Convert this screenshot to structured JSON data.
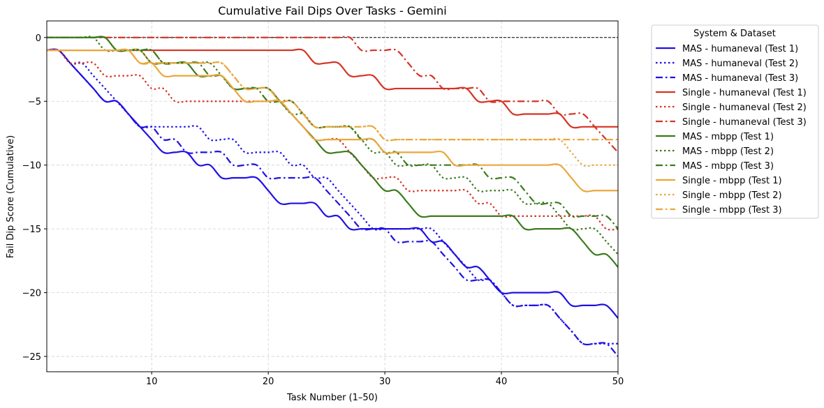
{
  "chart_data": {
    "type": "line",
    "title": "Cumulative Fail Dips Over Tasks - Gemini",
    "xlabel": "Task Number (1–50)",
    "ylabel": "Fail Dip Score (Cumulative)",
    "xlim": [
      1,
      50
    ],
    "ylim": [
      -26.2,
      1.3
    ],
    "xticks": [
      10,
      20,
      30,
      40,
      50
    ],
    "yticks": [
      0,
      -5,
      -10,
      -15,
      -20,
      -25
    ],
    "grid": true,
    "reference_line_y": 0,
    "legend_title": "System & Dataset",
    "legend_position": "outside-right",
    "x": [
      1,
      2,
      3,
      4,
      5,
      6,
      7,
      8,
      9,
      10,
      11,
      12,
      13,
      14,
      15,
      16,
      17,
      18,
      19,
      20,
      21,
      22,
      23,
      24,
      25,
      26,
      27,
      28,
      29,
      30,
      31,
      32,
      33,
      34,
      35,
      36,
      37,
      38,
      39,
      40,
      41,
      42,
      43,
      44,
      45,
      46,
      47,
      48,
      49,
      50
    ],
    "series": [
      {
        "name": "MAS - humaneval (Test 1)",
        "color": "#1f10e6",
        "dash": "solid",
        "values": [
          -1,
          -1,
          -2,
          -3,
          -4,
          -5,
          -5,
          -6,
          -7,
          -8,
          -9,
          -9,
          -9,
          -10,
          -10,
          -11,
          -11,
          -11,
          -11,
          -12,
          -13,
          -13,
          -13,
          -13,
          -14,
          -14,
          -15,
          -15,
          -15,
          -15,
          -15,
          -15,
          -15,
          -16,
          -16,
          -17,
          -18,
          -18,
          -19,
          -20,
          -20,
          -20,
          -20,
          -20,
          -20,
          -21,
          -21,
          -21,
          -21,
          -22
        ]
      },
      {
        "name": "MAS - humaneval (Test 2)",
        "color": "#1f10e6",
        "dash": "dotted",
        "values": [
          -1,
          -1,
          -2,
          -2,
          -3,
          -4,
          -5,
          -6,
          -7,
          -7,
          -7,
          -7,
          -7,
          -7,
          -8,
          -8,
          -8,
          -9,
          -9,
          -9,
          -9,
          -10,
          -10,
          -11,
          -11,
          -12,
          -13,
          -14,
          -15,
          -15,
          -15,
          -15,
          -15,
          -15,
          -16,
          -17,
          -18,
          -19,
          -19,
          -20,
          -21,
          -21,
          -21,
          -21,
          -22,
          -23,
          -24,
          -24,
          -24,
          -24
        ]
      },
      {
        "name": "MAS - humaneval (Test 3)",
        "color": "#1f10e6",
        "dash": "dashdot",
        "values": [
          -1,
          -1,
          -2,
          -3,
          -4,
          -5,
          -5,
          -6,
          -7,
          -7,
          -8,
          -8,
          -9,
          -9,
          -9,
          -9,
          -10,
          -10,
          -10,
          -11,
          -11,
          -11,
          -11,
          -11,
          -12,
          -13,
          -14,
          -15,
          -15,
          -15,
          -16,
          -16,
          -16,
          -16,
          -17,
          -18,
          -19,
          -19,
          -19,
          -20,
          -21,
          -21,
          -21,
          -21,
          -22,
          -23,
          -24,
          -24,
          -24,
          -25
        ]
      },
      {
        "name": "Single - humaneval (Test 1)",
        "color": "#d63324",
        "dash": "solid",
        "values": [
          -1,
          -1,
          -1,
          -1,
          -1,
          -1,
          -1,
          -1,
          -1,
          -1,
          -1,
          -1,
          -1,
          -1,
          -1,
          -1,
          -1,
          -1,
          -1,
          -1,
          -1,
          -1,
          -1,
          -2,
          -2,
          -2,
          -3,
          -3,
          -3,
          -4,
          -4,
          -4,
          -4,
          -4,
          -4,
          -4,
          -4,
          -5,
          -5,
          -5,
          -6,
          -6,
          -6,
          -6,
          -6,
          -7,
          -7,
          -7,
          -7,
          -7
        ]
      },
      {
        "name": "Single - humaneval (Test 2)",
        "color": "#d63324",
        "dash": "dotted",
        "values": [
          -1,
          -1,
          -2,
          -2,
          -2,
          -3,
          -3,
          -3,
          -3,
          -4,
          -4,
          -5,
          -5,
          -5,
          -5,
          -5,
          -5,
          -5,
          -5,
          -5,
          -5,
          -6,
          -7,
          -8,
          -8,
          -8,
          -9,
          -10,
          -11,
          -11,
          -11,
          -12,
          -12,
          -12,
          -12,
          -12,
          -12,
          -13,
          -13,
          -14,
          -14,
          -14,
          -14,
          -14,
          -14,
          -14,
          -14,
          -14,
          -15,
          -15
        ]
      },
      {
        "name": "Single - humaneval (Test 3)",
        "color": "#d63324",
        "dash": "dashdot",
        "values": [
          0,
          0,
          0,
          0,
          0,
          0,
          0,
          0,
          0,
          0,
          0,
          0,
          0,
          0,
          0,
          0,
          0,
          0,
          0,
          0,
          0,
          0,
          0,
          0,
          0,
          0,
          0,
          -1,
          -1,
          -1,
          -1,
          -2,
          -3,
          -3,
          -4,
          -4,
          -4,
          -4,
          -5,
          -5,
          -5,
          -5,
          -5,
          -5,
          -6,
          -6,
          -6,
          -7,
          -8,
          -9
        ]
      },
      {
        "name": "MAS - mbpp (Test 1)",
        "color": "#3a7a1e",
        "dash": "solid",
        "values": [
          0,
          0,
          0,
          0,
          0,
          0,
          -1,
          -1,
          -1,
          -2,
          -2,
          -2,
          -2,
          -3,
          -3,
          -3,
          -4,
          -4,
          -4,
          -4,
          -5,
          -6,
          -7,
          -8,
          -9,
          -9,
          -9,
          -10,
          -11,
          -12,
          -12,
          -13,
          -14,
          -14,
          -14,
          -14,
          -14,
          -14,
          -14,
          -14,
          -14,
          -15,
          -15,
          -15,
          -15,
          -15,
          -16,
          -17,
          -17,
          -18
        ]
      },
      {
        "name": "MAS - mbpp (Test 2)",
        "color": "#3a7a1e",
        "dash": "dotted",
        "values": [
          0,
          0,
          0,
          0,
          0,
          -1,
          -1,
          -1,
          -1,
          -1,
          -2,
          -2,
          -2,
          -2,
          -2,
          -3,
          -4,
          -4,
          -4,
          -4,
          -5,
          -6,
          -6,
          -7,
          -7,
          -7,
          -7,
          -8,
          -9,
          -9,
          -10,
          -10,
          -10,
          -10,
          -11,
          -11,
          -11,
          -12,
          -12,
          -12,
          -12,
          -13,
          -13,
          -13,
          -14,
          -15,
          -15,
          -15,
          -16,
          -17
        ]
      },
      {
        "name": "MAS - mbpp (Test 3)",
        "color": "#3a7a1e",
        "dash": "dashdot",
        "values": [
          0,
          0,
          0,
          0,
          0,
          0,
          -1,
          -1,
          -1,
          -1,
          -2,
          -2,
          -2,
          -2,
          -3,
          -3,
          -4,
          -4,
          -4,
          -5,
          -5,
          -5,
          -6,
          -7,
          -7,
          -7,
          -7,
          -8,
          -8,
          -9,
          -9,
          -10,
          -10,
          -10,
          -10,
          -10,
          -10,
          -10,
          -11,
          -11,
          -11,
          -12,
          -13,
          -13,
          -13,
          -14,
          -14,
          -14,
          -14,
          -15
        ]
      },
      {
        "name": "Single - mbpp (Test 1)",
        "color": "#eaa73a",
        "dash": "solid",
        "values": [
          -1,
          -1,
          -1,
          -1,
          -1,
          -1,
          -1,
          -1,
          -2,
          -2,
          -3,
          -3,
          -3,
          -3,
          -3,
          -3,
          -4,
          -5,
          -5,
          -5,
          -5,
          -6,
          -7,
          -8,
          -8,
          -8,
          -8,
          -8,
          -8,
          -9,
          -9,
          -9,
          -9,
          -9,
          -9,
          -10,
          -10,
          -10,
          -10,
          -10,
          -10,
          -10,
          -10,
          -10,
          -10,
          -11,
          -12,
          -12,
          -12,
          -12
        ]
      },
      {
        "name": "Single - mbpp (Test 2)",
        "color": "#eaa73a",
        "dash": "dotted",
        "values": [
          -1,
          -1,
          -1,
          -1,
          -1,
          -1,
          -1,
          -1,
          -1,
          -2,
          -2,
          -2,
          -2,
          -2,
          -2,
          -2,
          -3,
          -4,
          -4,
          -4,
          -5,
          -5,
          -6,
          -7,
          -7,
          -7,
          -7,
          -7,
          -7,
          -8,
          -8,
          -8,
          -8,
          -8,
          -8,
          -8,
          -8,
          -8,
          -8,
          -8,
          -8,
          -8,
          -8,
          -8,
          -8,
          -9,
          -10,
          -10,
          -10,
          -10
        ]
      },
      {
        "name": "Single - mbpp (Test 3)",
        "color": "#eaa73a",
        "dash": "dashdot",
        "values": [
          -1,
          -1,
          -1,
          -1,
          -1,
          -1,
          -1,
          -1,
          -2,
          -2,
          -2,
          -2,
          -2,
          -2,
          -2,
          -2,
          -3,
          -4,
          -4,
          -4,
          -5,
          -5,
          -6,
          -7,
          -7,
          -7,
          -7,
          -7,
          -7,
          -8,
          -8,
          -8,
          -8,
          -8,
          -8,
          -8,
          -8,
          -8,
          -8,
          -8,
          -8,
          -8,
          -8,
          -8,
          -8,
          -8,
          -8,
          -8,
          -8,
          -8
        ]
      }
    ]
  }
}
